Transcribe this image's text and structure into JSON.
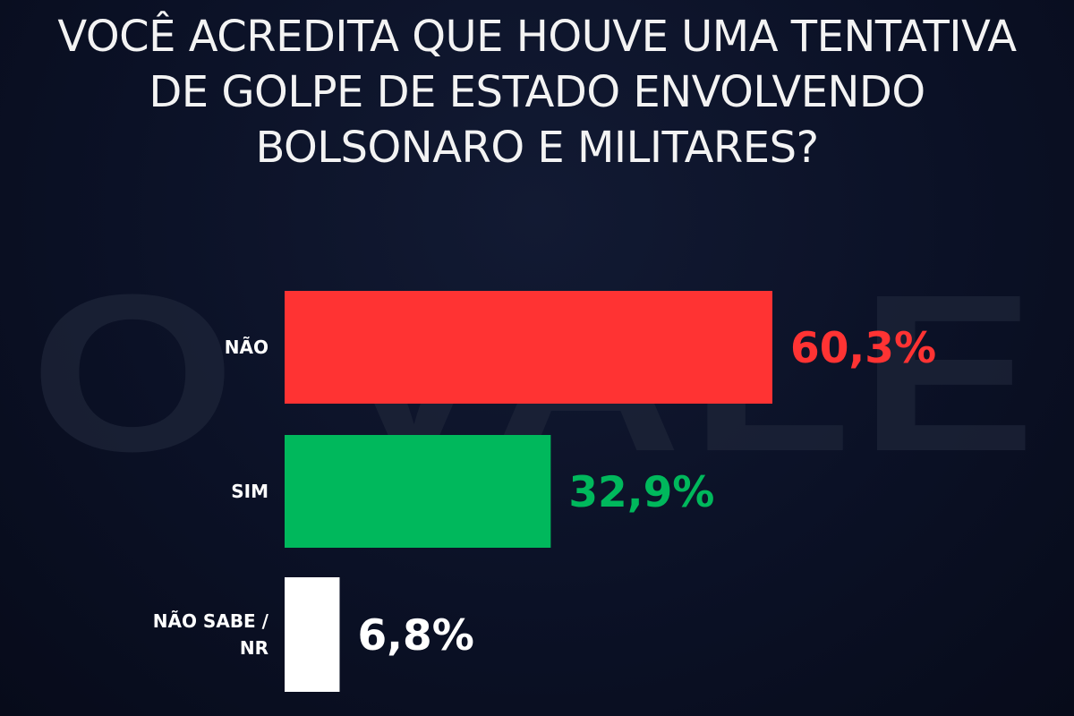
{
  "watermark": "O VALE",
  "chart_data": {
    "type": "bar",
    "orientation": "horizontal",
    "title_lines": [
      "VOCÊ ACREDITA QUE HOUVE UMA TENTATIVA",
      "DE GOLPE DE ESTADO ENVOLVENDO",
      "BOLSONARO E MILITARES?"
    ],
    "categories": [
      {
        "label_lines": [
          "NÃO"
        ],
        "value": 60.3,
        "value_label": "60,3%",
        "color": "#ff3333",
        "label_color": "#ff3333"
      },
      {
        "label_lines": [
          "SIM"
        ],
        "value": 32.9,
        "value_label": "32,9%",
        "color": "#00b85c",
        "label_color": "#00b85c"
      },
      {
        "label_lines": [
          "NÃO SABE /",
          "NR"
        ],
        "value": 6.8,
        "value_label": "6,8%",
        "color": "#ffffff",
        "label_color": "#ffffff"
      }
    ],
    "xlim": [
      0,
      60.3
    ],
    "grid": false,
    "legend": "none"
  }
}
